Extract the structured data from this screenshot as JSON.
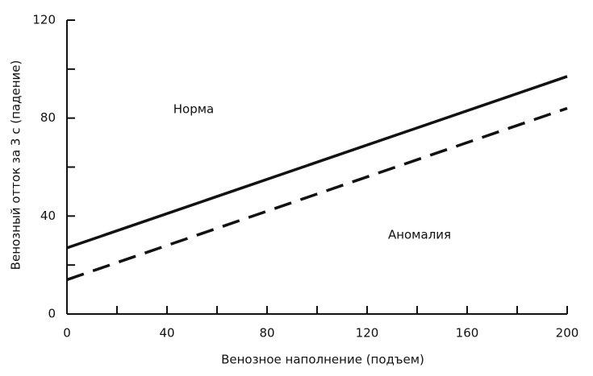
{
  "chart_data": {
    "type": "line",
    "x_label": "Венозное наполнение (подъем)",
    "y_label": "Венозный отток за 3 с (падение)",
    "x": [
      0,
      200
    ],
    "series": [
      {
        "values": [
          27,
          97
        ],
        "color": "#111111",
        "dash": "solid"
      },
      {
        "values": [
          14,
          84
        ],
        "color": "#111111",
        "dash": "dashed"
      }
    ],
    "annotations": [
      "Норма",
      "Аномалия"
    ],
    "xlim": [
      0,
      200
    ],
    "ylim": [
      0,
      120
    ],
    "xticks": [
      0,
      40,
      80,
      120,
      160,
      200
    ],
    "yticks": [
      0,
      40,
      80,
      120
    ],
    "minor_xticks": [
      20,
      60,
      100,
      140,
      180
    ],
    "minor_yticks": [
      20,
      60,
      100
    ],
    "grid": false
  }
}
